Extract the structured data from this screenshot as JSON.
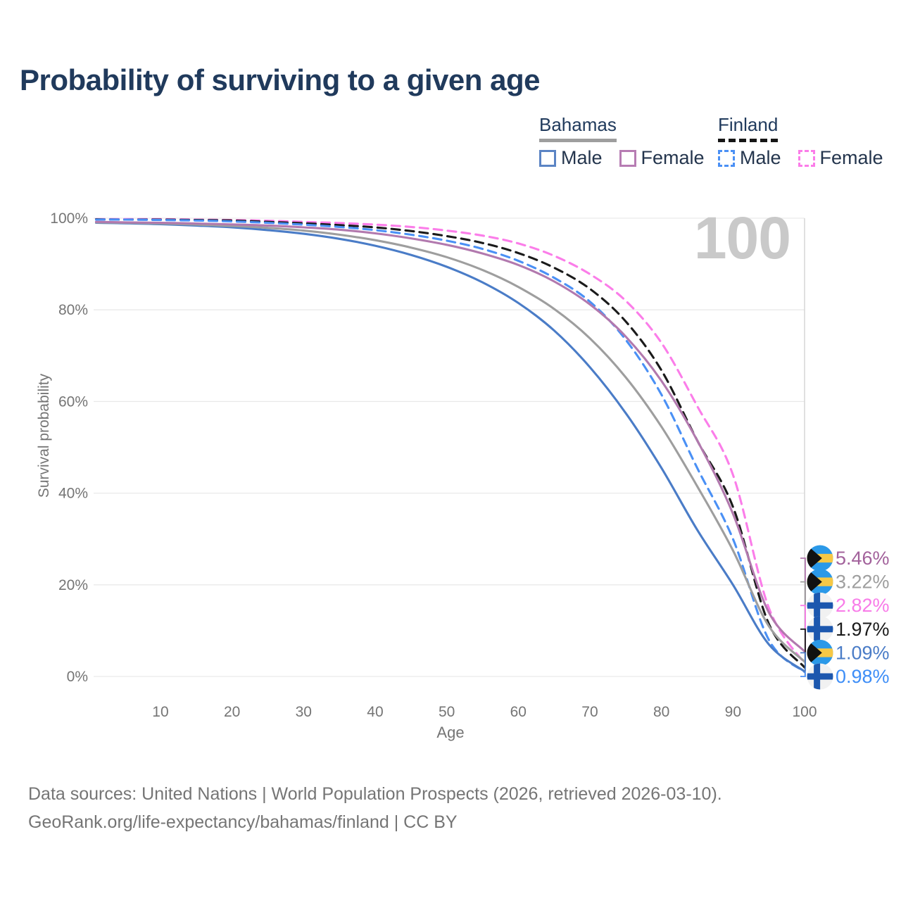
{
  "title": "Probability of surviving to a given age",
  "legend": {
    "groups": [
      {
        "label": "Bahamas",
        "line_style": "solid",
        "underline_color": "#9e9e9e",
        "items": [
          {
            "label": "Male",
            "color": "#5b84c4"
          },
          {
            "label": "Female",
            "color": "#b77cb3"
          }
        ]
      },
      {
        "label": "Finland",
        "line_style": "dashed",
        "underline_color": "#161616",
        "items": [
          {
            "label": "Male",
            "color": "#4a90f5"
          },
          {
            "label": "Female",
            "color": "#fb7de9"
          }
        ]
      }
    ]
  },
  "watermark": "100",
  "footer": {
    "line1": "Data sources: United Nations | World Population Prospects (2026, retrieved 2026-03-10).",
    "line2": "GeoRank.org/life-expectancy/bahamas/finland | CC BY"
  },
  "flag_colors": {
    "bahamas": {
      "aqua": "#2b99e8",
      "gold": "#f6c845",
      "black": "#111111"
    },
    "finland": {
      "bg": "#f1f1f1",
      "cross": "#1c57ae"
    }
  },
  "chart_data": {
    "type": "line",
    "title": "Probability of surviving to a given age",
    "xlabel": "Age",
    "ylabel": "Survival probability",
    "xlim": [
      0,
      100
    ],
    "ylim": [
      0,
      100
    ],
    "grid": "horizontal",
    "hover_age": 100,
    "x_ticks": [
      {
        "value": 10,
        "label": "10"
      },
      {
        "value": 20,
        "label": "20"
      },
      {
        "value": 30,
        "label": "30"
      },
      {
        "value": 40,
        "label": "40"
      },
      {
        "value": 50,
        "label": "50"
      },
      {
        "value": 60,
        "label": "60"
      },
      {
        "value": 70,
        "label": "70"
      },
      {
        "value": 80,
        "label": "80"
      },
      {
        "value": 90,
        "label": "90"
      },
      {
        "value": 100,
        "label": "100"
      }
    ],
    "y_ticks": [
      {
        "value": 0,
        "label": "0%"
      },
      {
        "value": 20,
        "label": "20%"
      },
      {
        "value": 40,
        "label": "40%"
      },
      {
        "value": 60,
        "label": "60%"
      },
      {
        "value": 80,
        "label": "80%"
      },
      {
        "value": 100,
        "label": "100%"
      }
    ],
    "x": [
      1,
      5,
      10,
      15,
      20,
      25,
      30,
      35,
      40,
      45,
      50,
      55,
      60,
      65,
      70,
      75,
      80,
      85,
      90,
      95,
      100
    ],
    "series": [
      {
        "id": "bahamas-female",
        "name": "Bahamas Female",
        "country": "Bahamas",
        "sex": "Female",
        "color": "#b279ae",
        "label_color": "#a2619b",
        "dashed": false,
        "end_label": "5.46%",
        "end_rank": 0,
        "values": [
          99.2,
          99.1,
          99.0,
          98.85,
          98.65,
          98.4,
          98.0,
          97.5,
          96.7,
          95.6,
          94.2,
          92.3,
          89.8,
          86.2,
          81.2,
          74.2,
          64.5,
          51.5,
          35.5,
          14.0,
          5.46
        ]
      },
      {
        "id": "bahamas-all",
        "name": "Bahamas Both sexes",
        "country": "Bahamas",
        "sex": "Both",
        "color": "#9e9e9e",
        "label_color": "#9e9e9e",
        "dashed": false,
        "end_label": "3.22%",
        "end_rank": 1,
        "values": [
          99.1,
          99.0,
          98.85,
          98.6,
          98.3,
          97.9,
          97.3,
          96.4,
          95.2,
          93.6,
          91.5,
          88.7,
          85.0,
          80.2,
          73.8,
          65.3,
          54.5,
          41.5,
          27.5,
          11.0,
          3.22
        ]
      },
      {
        "id": "finland-female",
        "name": "Finland Female",
        "country": "Finland",
        "sex": "Female",
        "color": "#fb7de9",
        "label_color": "#f87be8",
        "dashed": true,
        "end_label": "2.82%",
        "end_rank": 2,
        "values": [
          99.8,
          99.8,
          99.8,
          99.7,
          99.6,
          99.45,
          99.2,
          98.95,
          98.6,
          98.1,
          97.3,
          96.2,
          94.5,
          91.8,
          87.8,
          82.0,
          72.8,
          59.0,
          44.0,
          15.0,
          2.82
        ]
      },
      {
        "id": "finland-all",
        "name": "Finland Both sexes",
        "country": "Finland",
        "sex": "Both",
        "color": "#1a1a1a",
        "label_color": "#1a1a1a",
        "dashed": true,
        "end_label": "1.97%",
        "end_rank": 3,
        "values": [
          99.75,
          99.7,
          99.7,
          99.6,
          99.5,
          99.2,
          98.9,
          98.5,
          98.0,
          97.2,
          96.1,
          94.6,
          92.4,
          89.2,
          84.6,
          77.5,
          66.8,
          51.5,
          37.0,
          11.5,
          1.97
        ]
      },
      {
        "id": "bahamas-male",
        "name": "Bahamas Male",
        "country": "Bahamas",
        "sex": "Male",
        "color": "#4a7cc7",
        "label_color": "#4a7cc7",
        "dashed": false,
        "end_label": "1.09%",
        "end_rank": 4,
        "values": [
          99.0,
          98.9,
          98.7,
          98.4,
          98.0,
          97.4,
          96.6,
          95.5,
          94.0,
          92.0,
          89.4,
          86.0,
          81.5,
          75.5,
          67.5,
          57.5,
          45.5,
          32.0,
          20.0,
          7.0,
          1.09
        ]
      },
      {
        "id": "finland-male",
        "name": "Finland Male",
        "country": "Finland",
        "sex": "Male",
        "color": "#4a90f5",
        "label_color": "#3e8ef7",
        "dashed": true,
        "end_label": "0.98%",
        "end_rank": 5,
        "values": [
          99.7,
          99.7,
          99.6,
          99.5,
          99.3,
          99.0,
          98.6,
          98.1,
          97.4,
          96.4,
          95.1,
          93.3,
          90.7,
          87.0,
          81.8,
          73.5,
          61.5,
          45.5,
          30.0,
          8.0,
          0.98
        ]
      }
    ]
  }
}
